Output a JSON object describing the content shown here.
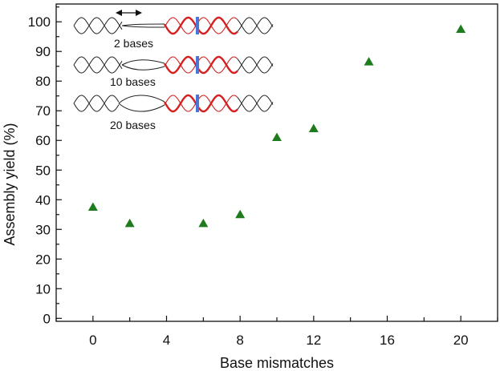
{
  "chart_data": {
    "type": "scatter",
    "xlabel": "Base mismatches",
    "ylabel": "Assembly yield (%)",
    "xlim": [
      -2,
      22
    ],
    "ylim": [
      -1,
      106
    ],
    "x_ticks": [
      0,
      4,
      8,
      12,
      16,
      20
    ],
    "y_ticks": [
      0,
      10,
      20,
      30,
      40,
      50,
      60,
      70,
      80,
      90,
      100
    ],
    "x_tick_labels": [
      "0",
      "4",
      "8",
      "12",
      "16",
      "20"
    ],
    "y_tick_labels": [
      "0",
      "10",
      "20",
      "30",
      "40",
      "50",
      "60",
      "70",
      "80",
      "90",
      "100"
    ],
    "grid": false,
    "marker": "triangle",
    "marker_color": "#1e7b1e",
    "points": [
      {
        "x": 0,
        "y": 37.5
      },
      {
        "x": 2,
        "y": 32
      },
      {
        "x": 6,
        "y": 32
      },
      {
        "x": 8,
        "y": 35
      },
      {
        "x": 10,
        "y": 61
      },
      {
        "x": 12,
        "y": 64
      },
      {
        "x": 15,
        "y": 86.5
      },
      {
        "x": 20,
        "y": 97.5
      }
    ]
  },
  "inset": {
    "labels": [
      "2 bases",
      "10 bases",
      "20 bases"
    ],
    "helix_color": "#222222",
    "highlight_color": "#d42020",
    "marker_color": "#4a74d6"
  }
}
